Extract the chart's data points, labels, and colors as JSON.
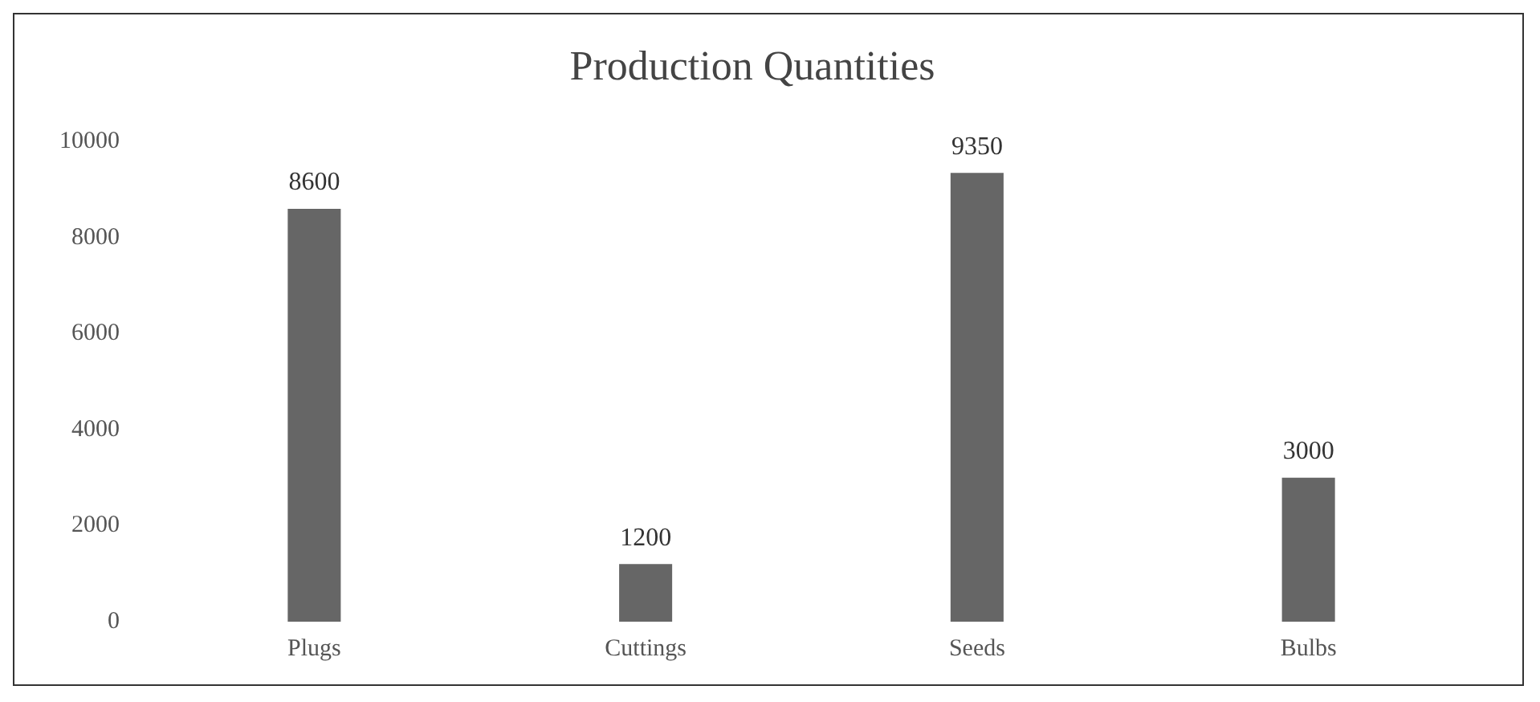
{
  "chart_data": {
    "type": "bar",
    "title": "Production Quantities",
    "categories": [
      "Plugs",
      "Cuttings",
      "Seeds",
      "Bulbs"
    ],
    "values": [
      8600,
      1200,
      9350,
      3000
    ],
    "color": "#666666",
    "ylim": [
      0,
      10000
    ],
    "yticks": [
      0,
      2000,
      4000,
      6000,
      8000,
      10000
    ],
    "grid": false,
    "legend": false,
    "data_labels": true
  }
}
